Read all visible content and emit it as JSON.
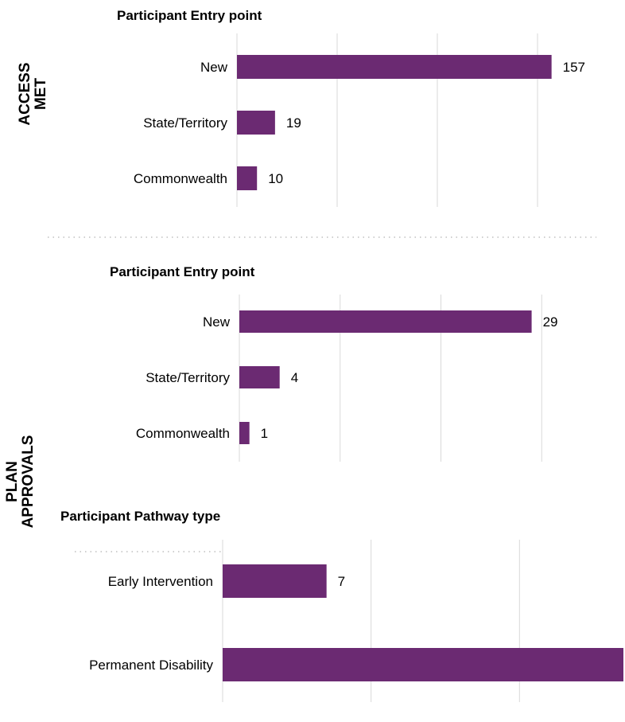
{
  "sections": [
    {
      "label_lines": [
        "ACCESS",
        "MET"
      ]
    },
    {
      "label_lines": [
        "PLAN",
        "APPROVALS"
      ]
    }
  ],
  "colors": {
    "bar": "#6b2a72",
    "grid": "#d9d9d9",
    "divider": "#bfbfbf"
  },
  "chart_data": [
    {
      "type": "bar",
      "orientation": "horizontal",
      "title": "Participant Entry point",
      "categories": [
        "New",
        "State/Territory",
        "Commonwealth"
      ],
      "values": [
        157,
        19,
        10
      ],
      "xlim": [
        0,
        200
      ],
      "grid": true
    },
    {
      "type": "bar",
      "orientation": "horizontal",
      "title": "Participant Entry point",
      "categories": [
        "New",
        "State/Territory",
        "Commonwealth"
      ],
      "values": [
        29,
        4,
        1
      ],
      "xlim": [
        0,
        40
      ],
      "grid": true
    },
    {
      "type": "bar",
      "orientation": "horizontal",
      "title": "Participant Pathway type",
      "categories": [
        "Early Intervention",
        "Permanent Disability"
      ],
      "values": [
        7,
        27
      ],
      "xlim": [
        0,
        30
      ],
      "grid": true
    }
  ]
}
